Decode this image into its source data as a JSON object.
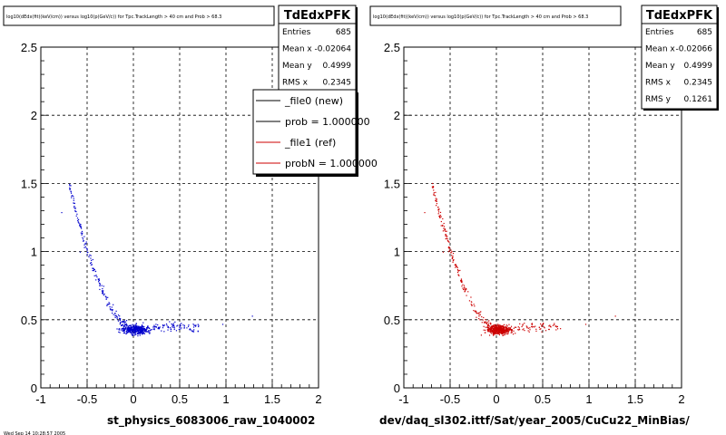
{
  "chart_data": [
    {
      "type": "scatter",
      "title": "log10(dEdx(fit)(keV/cm)) versus log10(p(GeV/c)) for Tpc.TrackLength > 40 cm and Prob > 68.3",
      "xlabel": "st_physics_6083006_raw_1040002",
      "ylabel": "",
      "xlim": [
        -1,
        2
      ],
      "ylim": [
        0,
        2.5
      ],
      "x_ticks": [
        "-1",
        "-0.5",
        "0",
        "0.5",
        "1",
        "1.5",
        "2"
      ],
      "y_ticks": [
        "0",
        "0.5",
        "1",
        "1.5",
        "2",
        "2.5"
      ],
      "grid": true,
      "series": [
        {
          "name": "_file0 (new)",
          "color": "#0000cc"
        }
      ],
      "stats": {
        "title": "TdEdxPFK",
        "rows": [
          {
            "label": "Entries",
            "value": "685"
          },
          {
            "label": "Mean x",
            "value": "-0.02064"
          },
          {
            "label": "Mean y",
            "value": "0.4999"
          },
          {
            "label": "RMS x",
            "value": "0.2345"
          }
        ]
      },
      "legend": {
        "placement": "top-right",
        "entries": [
          {
            "label": "_file0 (new)",
            "color": "#000000"
          },
          {
            "label": "prob = 1.000000",
            "color": "#000000"
          },
          {
            "label": "_file1 (ref)",
            "color": "#cc0000"
          },
          {
            "label": "probN = 1.000000",
            "color": "#cc0000"
          }
        ]
      }
    },
    {
      "type": "scatter",
      "title": "log10(dEdx(fit)(keV/cm)) versus log10(p(GeV/c)) for Tpc.TrackLength > 40 cm and Prob > 68.3",
      "xlabel": "dev/daq_sl302.ittf/Sat/year_2005/CuCu22_MinBias/",
      "ylabel": "",
      "xlim": [
        -1,
        2
      ],
      "ylim": [
        0,
        2.5
      ],
      "x_ticks": [
        "-1",
        "-0.5",
        "0",
        "0.5",
        "1",
        "1.5",
        "2"
      ],
      "y_ticks": [
        "0",
        "0.5",
        "1",
        "1.5",
        "2",
        "2.5"
      ],
      "grid": true,
      "series": [
        {
          "name": "_file1 (ref)",
          "color": "#cc0000"
        }
      ],
      "stats": {
        "title": "TdEdxPFK",
        "rows": [
          {
            "label": "Entries",
            "value": "685"
          },
          {
            "label": "Mean x",
            "value": "-0.02066"
          },
          {
            "label": "Mean y",
            "value": "0.4999"
          },
          {
            "label": "RMS x",
            "value": "0.2345"
          },
          {
            "label": "RMS y",
            "value": "0.1261"
          }
        ]
      }
    }
  ],
  "footer": {
    "date_text": "Wed Sep 14 10:28:57 2005"
  }
}
